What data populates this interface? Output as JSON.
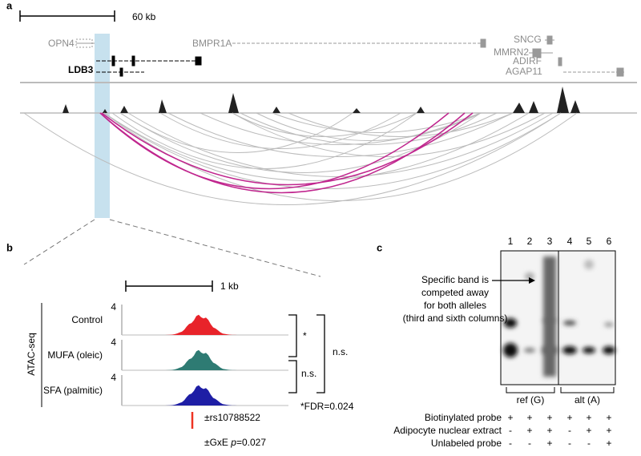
{
  "panel_a": {
    "label": "a",
    "scale_bar": "60 kb",
    "genes": [
      "OPN4",
      "BMPR1A",
      "SNCG",
      "MMRN2",
      "LDB3",
      "ADIRF",
      "AGAP11"
    ]
  },
  "panel_b": {
    "label": "b",
    "scale_bar": "1 kb",
    "assay": "ATAC-seq",
    "tracks": [
      {
        "name": "Control",
        "ymax": 4
      },
      {
        "name": "MUFA (oleic)",
        "ymax": 4
      },
      {
        "name": "SFA (palmitic)",
        "ymax": 4
      }
    ],
    "significance": [
      "*",
      "n.s.",
      "n.s."
    ],
    "fdr": "*FDR=0.024",
    "snp": "±rs10788522",
    "gxe": {
      "prefix": "±GxE ",
      "p": "p",
      "value": "=0.027"
    }
  },
  "panel_c": {
    "label": "c",
    "lanes": [
      "1",
      "2",
      "3",
      "4",
      "5",
      "6"
    ],
    "annotation": [
      "Specific band is",
      "competed away",
      "for both alleles",
      "(third and sixth columns)"
    ],
    "groups": [
      "ref (G)",
      "alt (A)"
    ],
    "rows": [
      {
        "label": "Biotinylated probe",
        "marks": [
          "+",
          "+",
          "+",
          "+",
          "+",
          "+"
        ]
      },
      {
        "label": "Adipocyte nuclear extract",
        "marks": [
          "-",
          "+",
          "+",
          "-",
          "+",
          "+"
        ]
      },
      {
        "label": "Unlabeled probe",
        "marks": [
          "-",
          "-",
          "+",
          "-",
          "-",
          "+"
        ]
      }
    ]
  }
}
